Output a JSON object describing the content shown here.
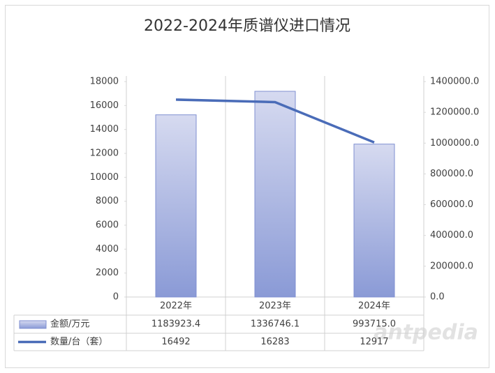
{
  "chart_data": {
    "type": "bar",
    "title": "2022-2024年质谱仪进口情况",
    "categories": [
      "2022年",
      "2023年",
      "2024年"
    ],
    "series": [
      {
        "name": "金额/万元",
        "type": "bar",
        "axis": "y2",
        "color": "#8a9ad6",
        "values": [
          1183923.4,
          1336746.1,
          993715.0
        ],
        "value_labels": [
          "1183923.4",
          "1336746.1",
          "993715.0"
        ]
      },
      {
        "name": "数量/台（套）",
        "type": "line",
        "color": "#4a6cb8",
        "values": [
          16492,
          16283,
          12917
        ]
      }
    ],
    "ylim": [
      0,
      18000
    ],
    "yticks": [
      0,
      2000,
      4000,
      6000,
      8000,
      10000,
      12000,
      14000,
      16000,
      18000
    ],
    "y2lim": [
      0,
      1400000
    ],
    "y2ticks": [
      {
        "value": 0,
        "label": "0.0"
      },
      {
        "value": 200000,
        "label": "200000.0"
      },
      {
        "value": 400000,
        "label": "400000.0"
      },
      {
        "value": 600000,
        "label": "600000.0"
      },
      {
        "value": 800000,
        "label": "800000.0"
      },
      {
        "value": 1000000,
        "label": "1000000.0"
      },
      {
        "value": 1200000,
        "label": "1200000.0"
      },
      {
        "value": 1400000,
        "label": "1400000.0"
      }
    ],
    "grid": false,
    "watermark": "antpedia"
  }
}
